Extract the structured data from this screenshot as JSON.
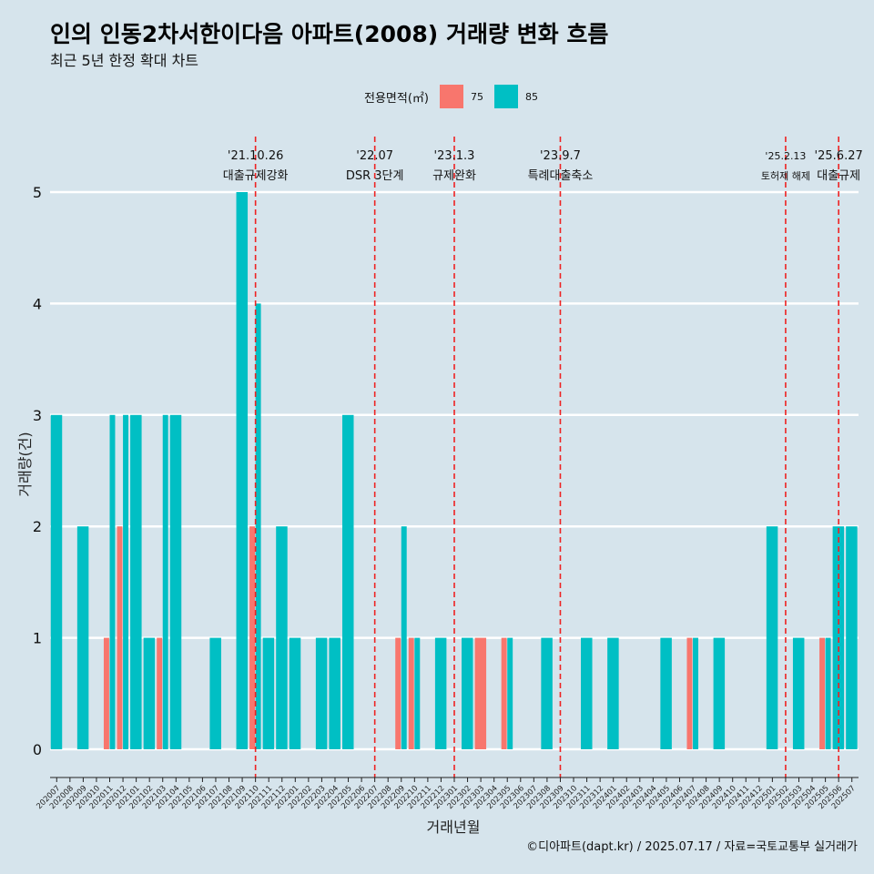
{
  "page": {
    "title": "인의 인동2차서한이다음 아파트(2008) 거래량 변화 흐름",
    "subtitle": "최근 5년 한정 확대 차트",
    "footer": "©디아파트(dapt.kr) / 2025.07.17 / 자료=국토교통부 실거래가"
  },
  "legend": {
    "title": "전용면적(㎡)",
    "items": [
      {
        "label": "75",
        "color": "#f8766d"
      },
      {
        "label": "85",
        "color": "#00bfc4"
      }
    ]
  },
  "chart_data": {
    "type": "bar",
    "title": "인의 인동2차서한이다음 아파트(2008) 거래량 변화 흐름",
    "xlabel": "거래년월",
    "ylabel": "거래량(건)",
    "ylim": [
      0,
      5
    ],
    "yticks": [
      0,
      1,
      2,
      3,
      4,
      5
    ],
    "categories": [
      "202007",
      "202008",
      "202009",
      "202010",
      "202011",
      "202012",
      "202101",
      "202102",
      "202103",
      "202104",
      "202105",
      "202106",
      "202107",
      "202108",
      "202109",
      "202110",
      "202111",
      "202112",
      "202201",
      "202202",
      "202203",
      "202204",
      "202205",
      "202206",
      "202207",
      "202208",
      "202209",
      "202210",
      "202211",
      "202212",
      "202301",
      "202302",
      "202303",
      "202304",
      "202305",
      "202306",
      "202307",
      "202308",
      "202309",
      "202310",
      "202311",
      "202312",
      "202401",
      "202402",
      "202403",
      "202404",
      "202405",
      "202406",
      "202407",
      "202408",
      "202409",
      "202410",
      "202411",
      "202412",
      "202501",
      "202502",
      "202503",
      "202504",
      "202505",
      "202506",
      "202507"
    ],
    "series": [
      {
        "name": "75",
        "color": "#f8766d",
        "values": [
          0,
          0,
          0,
          0,
          1,
          2,
          0,
          0,
          1,
          0,
          0,
          0,
          0,
          0,
          0,
          2,
          0,
          0,
          0,
          0,
          0,
          0,
          0,
          0,
          0,
          0,
          1,
          1,
          0,
          0,
          0,
          0,
          1,
          0,
          1,
          0,
          0,
          0,
          0,
          0,
          0,
          0,
          0,
          0,
          0,
          0,
          0,
          0,
          1,
          0,
          0,
          0,
          0,
          0,
          0,
          0,
          0,
          0,
          1,
          0,
          0
        ]
      },
      {
        "name": "85",
        "color": "#00bfc4",
        "values": [
          3,
          0,
          2,
          0,
          3,
          3,
          3,
          1,
          3,
          3,
          0,
          0,
          1,
          0,
          5,
          4,
          1,
          2,
          1,
          0,
          1,
          1,
          3,
          0,
          0,
          0,
          2,
          1,
          0,
          1,
          0,
          1,
          0,
          0,
          1,
          0,
          0,
          1,
          0,
          0,
          1,
          0,
          1,
          0,
          0,
          0,
          1,
          0,
          1,
          0,
          1,
          0,
          0,
          0,
          2,
          0,
          1,
          0,
          1,
          2,
          2
        ]
      }
    ],
    "events": [
      {
        "date": "'21.10.26",
        "label": "대출규제강화",
        "index": 15
      },
      {
        "date": "'22.07",
        "label": "DSR 3단계",
        "index": 24
      },
      {
        "date": "'23.1.3",
        "label": "규제완화",
        "index": 30
      },
      {
        "date": "'23.9.7",
        "label": "특례대출축소",
        "index": 38
      },
      {
        "date": "'25.2.13",
        "label": "토허제 해제",
        "index": 55
      },
      {
        "date": "'25.6.27",
        "label": "대출규제",
        "index": 59
      }
    ]
  }
}
